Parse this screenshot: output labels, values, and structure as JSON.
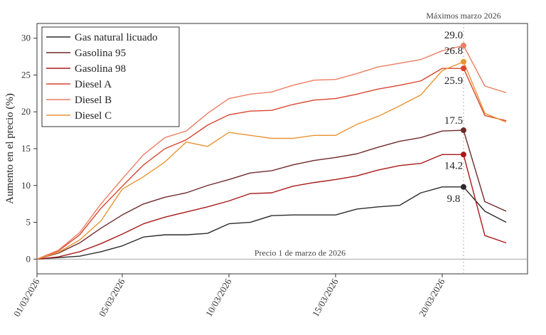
{
  "chart_data": {
    "type": "line",
    "ylabel": "Aumento en el precio (%)",
    "xlabel": "",
    "ylim": [
      -2,
      32
    ],
    "yticks": [
      0,
      5,
      10,
      15,
      20,
      25,
      30
    ],
    "xticks": [
      "01/03/2026",
      "05/03/2026",
      "10/03/2026",
      "15/03/2026",
      "20/03/2026"
    ],
    "x": [
      "01/03/2026",
      "02/03/2026",
      "03/03/2026",
      "04/03/2026",
      "05/03/2026",
      "06/03/2026",
      "07/03/2026",
      "08/03/2026",
      "09/03/2026",
      "10/03/2026",
      "11/03/2026",
      "12/03/2026",
      "13/03/2026",
      "14/03/2026",
      "15/03/2026",
      "16/03/2026",
      "17/03/2026",
      "18/03/2026",
      "19/03/2026",
      "20/03/2026",
      "21/03/2026",
      "22/03/2026",
      "23/03/2026"
    ],
    "xlim": [
      "01/03/2026",
      "24/03/2026"
    ],
    "peak_date": "21/03/2026",
    "baseline_label": "Precio 1 de marzo de 2026",
    "peak_label": "Máximos marzo 2026",
    "legend_position": "top-left",
    "grid": false,
    "series": [
      {
        "name": "Gas natural licuado",
        "color": "#2b2b2b",
        "values": [
          0,
          0.2,
          0.4,
          1.0,
          1.8,
          3.0,
          3.3,
          3.3,
          3.5,
          4.8,
          5.0,
          5.9,
          6.0,
          6.0,
          6.0,
          6.8,
          7.1,
          7.3,
          9.0,
          9.8,
          9.8,
          6.5,
          5.0
        ],
        "peak": 9.8,
        "peak_label": "9.8"
      },
      {
        "name": "Gasolina 95",
        "color": "#6e2a2a",
        "values": [
          0,
          0.8,
          2.2,
          4.2,
          6.0,
          7.5,
          8.4,
          9.0,
          10.0,
          10.8,
          11.7,
          12.0,
          12.8,
          13.4,
          13.8,
          14.3,
          15.2,
          16.0,
          16.5,
          17.4,
          17.5,
          7.8,
          6.5
        ],
        "peak": 17.5,
        "peak_label": "17.5"
      },
      {
        "name": "Gasolina 98",
        "color": "#a81818",
        "values": [
          0,
          0.3,
          1.0,
          2.1,
          3.4,
          4.8,
          5.7,
          6.4,
          7.1,
          7.9,
          8.9,
          9.0,
          9.9,
          10.4,
          10.8,
          11.3,
          12.1,
          12.7,
          13.0,
          14.2,
          14.2,
          3.2,
          2.2
        ],
        "peak": 14.2,
        "peak_label": "14.2"
      },
      {
        "name": "Diesel A",
        "color": "#d9442e",
        "values": [
          0,
          1.1,
          3.3,
          6.9,
          9.9,
          12.8,
          15.0,
          16.2,
          18.2,
          19.6,
          20.1,
          20.2,
          21.0,
          21.6,
          21.8,
          22.4,
          23.1,
          23.6,
          24.2,
          25.9,
          25.9,
          19.5,
          18.8
        ],
        "peak": 25.9,
        "peak_label": "25.9"
      },
      {
        "name": "Diesel B",
        "color": "#ec7e63",
        "values": [
          0,
          1.2,
          3.6,
          7.5,
          10.9,
          14.2,
          16.5,
          17.4,
          19.8,
          21.8,
          22.4,
          22.7,
          23.6,
          24.3,
          24.4,
          25.2,
          26.1,
          26.6,
          27.1,
          28.3,
          29.0,
          23.5,
          22.6
        ],
        "peak": 29.0,
        "peak_label": "29.0"
      },
      {
        "name": "Diesel C",
        "color": "#e99433",
        "values": [
          0,
          0.9,
          2.6,
          5.2,
          9.5,
          11.2,
          13.2,
          15.9,
          15.3,
          17.2,
          16.8,
          16.4,
          16.4,
          16.8,
          16.8,
          18.3,
          19.4,
          20.8,
          22.3,
          25.6,
          26.8,
          19.8,
          18.6
        ],
        "peak": 26.8,
        "peak_label": "26.8"
      }
    ]
  }
}
